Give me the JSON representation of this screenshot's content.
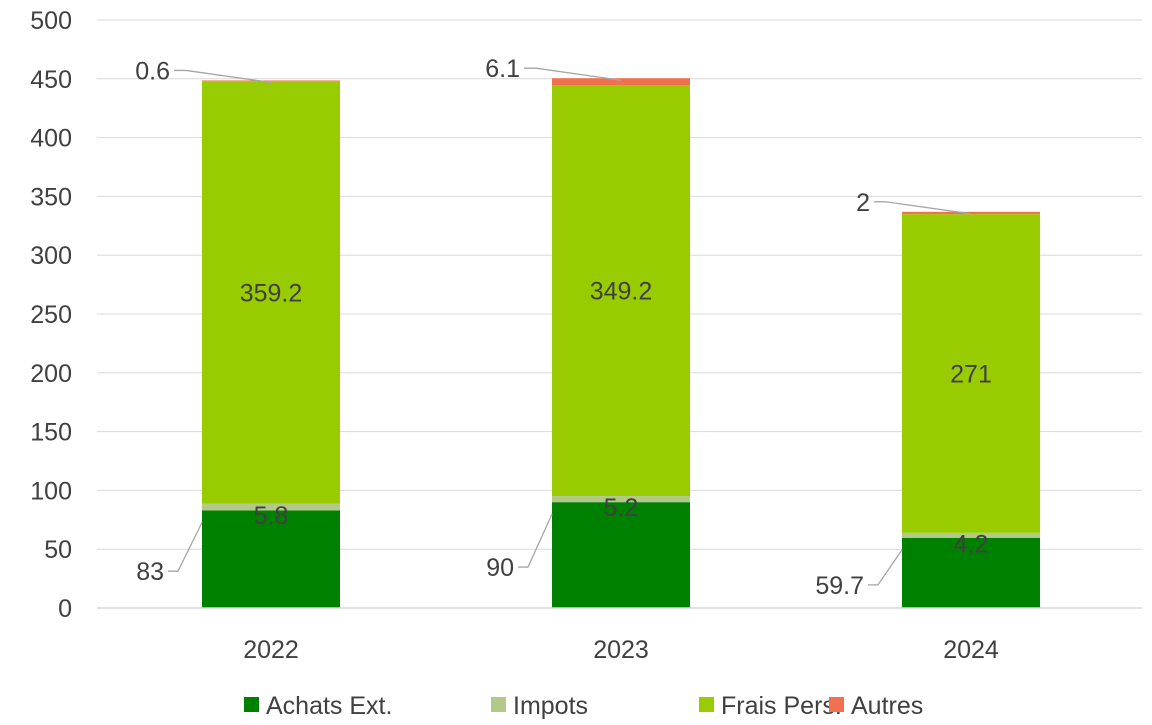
{
  "chart_data": {
    "type": "bar",
    "stacked": true,
    "categories": [
      "2022",
      "2023",
      "2024"
    ],
    "series": [
      {
        "name": "Achats Ext.",
        "color": "#008000",
        "values": [
          83,
          90,
          59.7
        ]
      },
      {
        "name": "Impots",
        "color": "#b3c98a",
        "values": [
          5.8,
          5.2,
          4.2
        ]
      },
      {
        "name": "Frais Pers.",
        "color": "#99cc00",
        "values": [
          359.2,
          349.2,
          271
        ]
      },
      {
        "name": "Autres",
        "color": "#f07050",
        "values": [
          0.6,
          6.1,
          2
        ]
      }
    ],
    "data_labels": [
      [
        "83",
        "90",
        "59.7"
      ],
      [
        "5.8",
        "5.2",
        "4.2"
      ],
      [
        "359.2",
        "349.2",
        "271"
      ],
      [
        "0.6",
        "6.1",
        "2"
      ]
    ],
    "ylim": [
      0,
      500
    ],
    "yticks": [
      "0",
      "50",
      "100",
      "150",
      "200",
      "250",
      "300",
      "350",
      "400",
      "450",
      "500"
    ],
    "grid": true,
    "legend_position": "bottom",
    "title": "",
    "xlabel": "",
    "ylabel": ""
  }
}
